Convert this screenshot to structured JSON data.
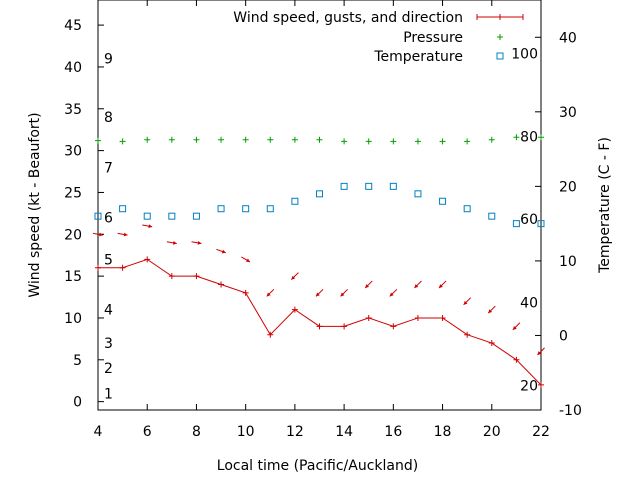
{
  "chart_data": {
    "type": "line",
    "x_label": "Local time (Pacific/Auckland)",
    "y_label_left": "Wind speed (kt - Beaufort)",
    "y_label_right": "Temperature (C - F)",
    "x_range": [
      4,
      22
    ],
    "x_ticks": [
      4,
      6,
      8,
      10,
      12,
      14,
      16,
      18,
      20,
      22
    ],
    "y_range_left": [
      -1,
      48
    ],
    "y_ticks_left": [
      0,
      5,
      10,
      15,
      20,
      25,
      30,
      35,
      40,
      45
    ],
    "y_range_right": [
      -10,
      45
    ],
    "y_ticks_right": [
      -10,
      0,
      10,
      20,
      30,
      40
    ],
    "beaufort_scale": [
      {
        "label": "1",
        "y": 1
      },
      {
        "label": "2",
        "y": 4
      },
      {
        "label": "3",
        "y": 7
      },
      {
        "label": "4",
        "y": 11
      },
      {
        "label": "5",
        "y": 17
      },
      {
        "label": "6",
        "y": 22
      },
      {
        "label": "7",
        "y": 28
      },
      {
        "label": "8",
        "y": 34
      },
      {
        "label": "9",
        "y": 41
      }
    ],
    "fahrenheit_scale": [
      {
        "label": "20",
        "t": -6.7
      },
      {
        "label": "40",
        "t": 4.4
      },
      {
        "label": "60",
        "t": 15.6
      },
      {
        "label": "80",
        "t": 26.7
      },
      {
        "label": "100",
        "t": 37.8
      }
    ],
    "legend_position": "top-right",
    "series": [
      {
        "name": "Wind speed, gusts, and direction",
        "color": "#d00000",
        "x": [
          4,
          5,
          6,
          7,
          8,
          9,
          10,
          11,
          12,
          13,
          14,
          15,
          16,
          17,
          18,
          19,
          20,
          21,
          22
        ],
        "y": [
          16,
          16,
          17,
          15,
          15,
          14,
          13,
          8,
          11,
          9,
          9,
          10,
          9,
          10,
          10,
          8,
          7,
          5,
          2
        ],
        "gusts": [
          20,
          20,
          21,
          19,
          19,
          18,
          17,
          13,
          15,
          13,
          13,
          14,
          13,
          14,
          14,
          12,
          11,
          9,
          6
        ],
        "direction_deg": [
          100,
          100,
          100,
          100,
          100,
          110,
          120,
          225,
          225,
          225,
          225,
          225,
          225,
          225,
          225,
          225,
          225,
          225,
          225
        ]
      },
      {
        "name": "Pressure",
        "color": "#00a000",
        "marker": "+",
        "x": [
          4,
          5,
          6,
          7,
          8,
          9,
          10,
          11,
          12,
          13,
          14,
          15,
          16,
          17,
          18,
          19,
          20,
          21,
          22
        ],
        "y": [
          31.2,
          31.1,
          31.3,
          31.3,
          31.3,
          31.3,
          31.3,
          31.3,
          31.3,
          31.3,
          31.1,
          31.1,
          31.1,
          31.1,
          31.1,
          31.1,
          31.3,
          31.6,
          31.6
        ]
      },
      {
        "name": "Temperature",
        "color": "#0080c0",
        "marker": "square",
        "x": [
          4,
          5,
          6,
          7,
          8,
          9,
          10,
          11,
          12,
          13,
          14,
          15,
          16,
          17,
          18,
          19,
          20,
          21,
          22
        ],
        "y": [
          16,
          17,
          16,
          16,
          16,
          17,
          17,
          17,
          18,
          19,
          20,
          20,
          20,
          19,
          18,
          17,
          16,
          15,
          15
        ]
      }
    ]
  }
}
